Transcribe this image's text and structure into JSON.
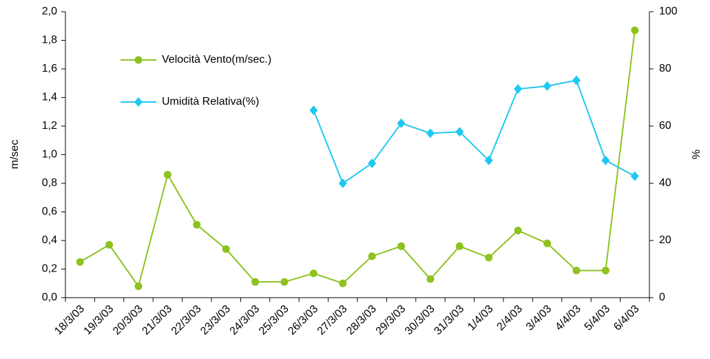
{
  "chart_data": {
    "type": "line",
    "ylabel": "m/sec",
    "y2label": "%",
    "categories": [
      "18/3/03",
      "19/3/03",
      "20/3/03",
      "21/3/03",
      "22/3/03",
      "23/3/03",
      "24/3/03",
      "25/3/03",
      "26/3/03",
      "27/3/03",
      "28/3/03",
      "29/3/03",
      "30/3/03",
      "31/3/03",
      "1/4/03",
      "2/4/03",
      "3/4/03",
      "4/4/03",
      "5/4/03",
      "6/4/03"
    ],
    "series": [
      {
        "name": "Velocità Vento(m/sec.)",
        "color": "#8dc21f",
        "marker": "circle",
        "values": [
          0.25,
          0.37,
          0.08,
          0.86,
          0.51,
          0.34,
          0.11,
          0.11,
          0.17,
          0.1,
          0.29,
          0.36,
          0.13,
          0.36,
          0.28,
          0.47,
          0.38,
          0.19,
          0.19,
          1.87
        ]
      },
      {
        "name": "Umidità Relativa(%)",
        "color": "#1ec8f0",
        "marker": "diamond",
        "axis": "y2",
        "values": [
          null,
          null,
          null,
          null,
          null,
          null,
          null,
          null,
          65.5,
          40,
          47,
          61,
          57.5,
          58,
          48,
          73,
          74,
          76,
          48,
          42.5
        ]
      }
    ],
    "ylim": [
      0,
      2
    ],
    "yticks": [
      {
        "value": 0,
        "label": "0,0"
      },
      {
        "value": 0.2,
        "label": "0,2"
      },
      {
        "value": 0.4,
        "label": "0,4"
      },
      {
        "value": 0.6,
        "label": "0,6"
      },
      {
        "value": 0.8,
        "label": "0,8"
      },
      {
        "value": 1,
        "label": "1,0"
      },
      {
        "value": 1.2,
        "label": "1,2"
      },
      {
        "value": 1.4,
        "label": "1,4"
      },
      {
        "value": 1.6,
        "label": "1,6"
      },
      {
        "value": 1.8,
        "label": "1,8"
      },
      {
        "value": 2,
        "label": "2,0"
      }
    ],
    "y2lim": [
      0,
      100
    ],
    "y2ticks": [
      0,
      20,
      40,
      60,
      80,
      100
    ],
    "legend": "upper left",
    "grid": false
  }
}
